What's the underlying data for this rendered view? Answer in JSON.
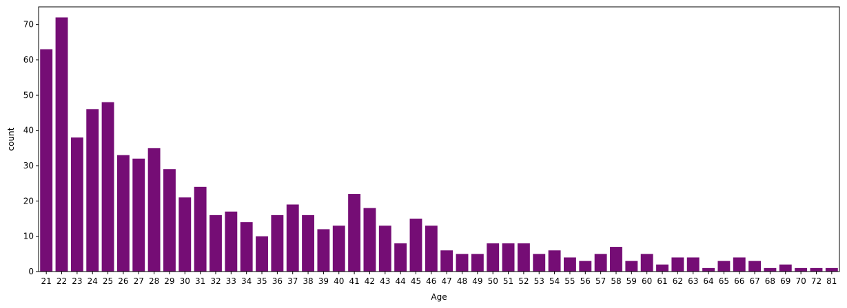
{
  "chart_data": {
    "type": "bar",
    "title": "",
    "xlabel": "Age",
    "ylabel": "count",
    "bar_color": "#750d75",
    "ylim": [
      0,
      75
    ],
    "yticks": [
      0,
      10,
      20,
      30,
      40,
      50,
      60,
      70
    ],
    "grid": false,
    "legend": "none",
    "categories": [
      "21",
      "22",
      "23",
      "24",
      "25",
      "26",
      "27",
      "28",
      "29",
      "30",
      "31",
      "32",
      "33",
      "34",
      "35",
      "36",
      "37",
      "38",
      "39",
      "40",
      "41",
      "42",
      "43",
      "44",
      "45",
      "46",
      "47",
      "48",
      "49",
      "50",
      "51",
      "52",
      "53",
      "54",
      "55",
      "56",
      "57",
      "58",
      "59",
      "60",
      "61",
      "62",
      "63",
      "64",
      "65",
      "66",
      "67",
      "68",
      "69",
      "70",
      "72",
      "81"
    ],
    "values": [
      63,
      72,
      38,
      46,
      48,
      33,
      32,
      35,
      29,
      21,
      24,
      16,
      17,
      14,
      10,
      16,
      19,
      16,
      12,
      13,
      22,
      18,
      13,
      8,
      15,
      13,
      6,
      5,
      5,
      8,
      8,
      8,
      5,
      6,
      4,
      3,
      5,
      7,
      3,
      5,
      2,
      4,
      4,
      1,
      3,
      4,
      3,
      1,
      2,
      1,
      1,
      1
    ]
  }
}
